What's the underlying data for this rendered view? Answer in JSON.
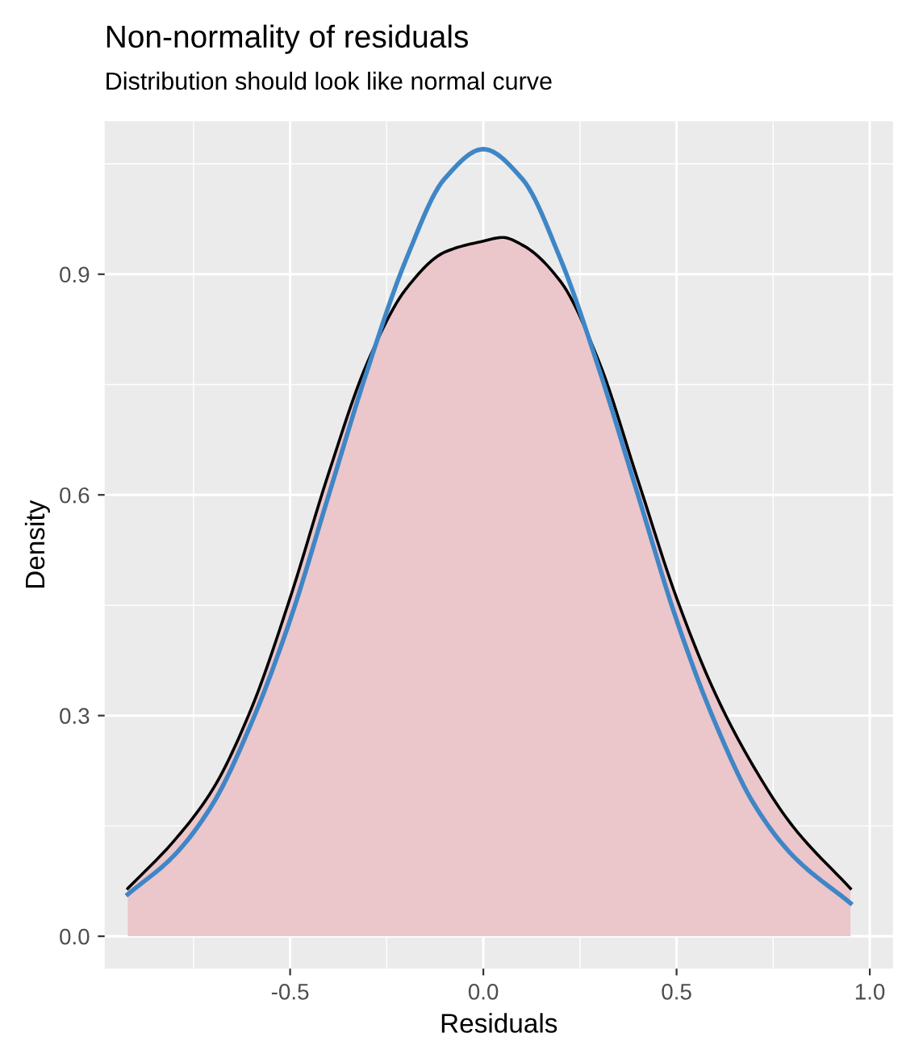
{
  "chart_data": {
    "type": "area",
    "title": "Non-normality of residuals",
    "subtitle": "Distribution should look like normal curve",
    "xlabel": "Residuals",
    "ylabel": "Density",
    "xlim": [
      -0.98,
      1.06
    ],
    "ylim": [
      -0.044,
      1.108
    ],
    "xticks": [
      {
        "value": -0.5,
        "label": "-0.5"
      },
      {
        "value": 0,
        "label": "0.0"
      },
      {
        "value": 0.5,
        "label": "0.5"
      },
      {
        "value": 1,
        "label": "1.0"
      }
    ],
    "yticks": [
      {
        "value": 0,
        "label": "0.0"
      },
      {
        "value": 0.3,
        "label": "0.3"
      },
      {
        "value": 0.6,
        "label": "0.6"
      },
      {
        "value": 0.9,
        "label": "0.9"
      }
    ],
    "grid": true,
    "series": [
      {
        "color": "#ebc6ca",
        "x": [
          -0.92,
          -0.8,
          -0.7,
          -0.6,
          -0.5,
          -0.4,
          -0.3,
          -0.2,
          -0.1,
          0,
          0.05,
          0.1,
          0.2,
          0.3,
          0.4,
          0.5,
          0.6,
          0.7,
          0.8,
          0.95
        ],
        "values": [
          0.065,
          0.13,
          0.2,
          0.31,
          0.46,
          0.63,
          0.78,
          0.88,
          0.93,
          0.945,
          0.95,
          0.94,
          0.89,
          0.78,
          0.62,
          0.46,
          0.33,
          0.23,
          0.15,
          0.065
        ]
      },
      {
        "type": "line",
        "color": "#3f86c6",
        "x": [
          -0.92,
          -0.8,
          -0.7,
          -0.6,
          -0.5,
          -0.4,
          -0.3,
          -0.2,
          -0.1,
          0,
          0.1,
          0.2,
          0.3,
          0.4,
          0.5,
          0.6,
          0.7,
          0.8,
          0.95
        ],
        "values": [
          0.057,
          0.11,
          0.18,
          0.29,
          0.43,
          0.6,
          0.77,
          0.92,
          1.03,
          1.07,
          1.03,
          0.92,
          0.77,
          0.6,
          0.43,
          0.29,
          0.18,
          0.11,
          0.045
        ]
      }
    ]
  }
}
